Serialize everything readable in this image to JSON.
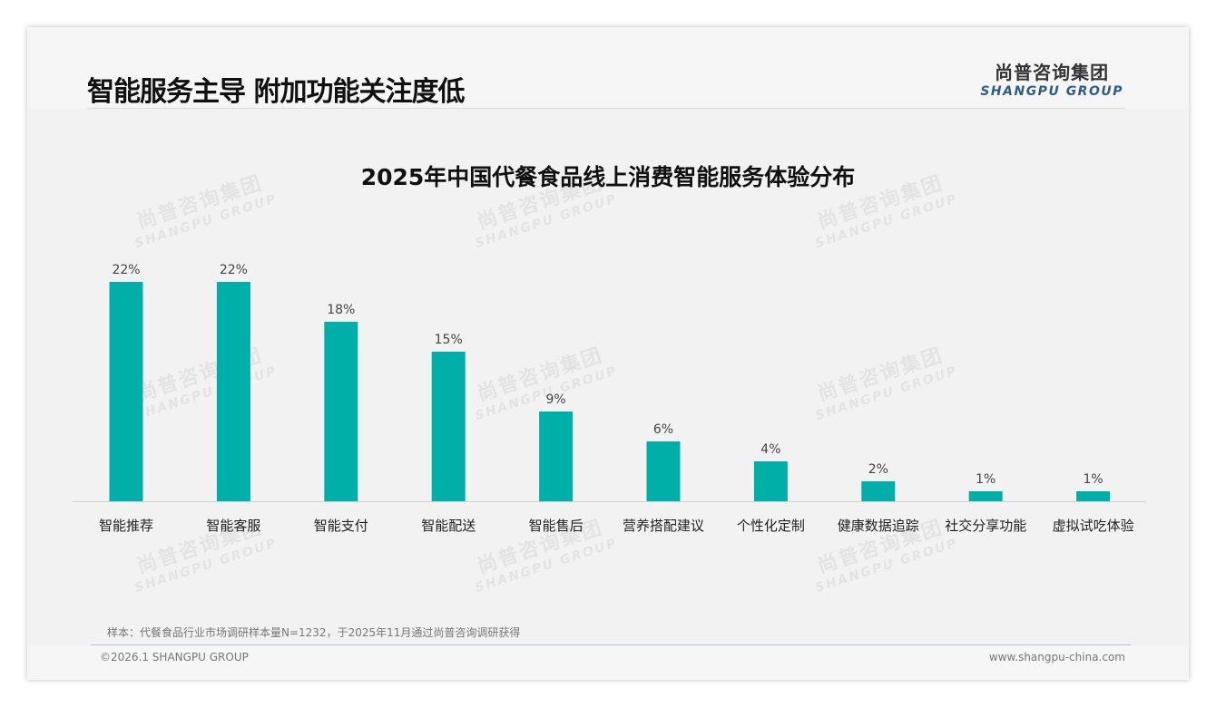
{
  "header": {
    "title": "智能服务主导 附加功能关注度低",
    "logo_cn": "尚普咨询集团",
    "logo_en": "SHANGPU GROUP"
  },
  "watermark": {
    "cn": "尚普咨询集团",
    "en": "SHANGPU GROUP"
  },
  "chart_data": {
    "type": "bar",
    "title": "2025年中国代餐食品线上消费智能服务体验分布",
    "categories": [
      "智能推荐",
      "智能客服",
      "智能支付",
      "智能配送",
      "智能售后",
      "营养搭配建议",
      "个性化定制",
      "健康数据追踪",
      "社交分享功能",
      "虚拟试吃体验"
    ],
    "values": [
      22,
      22,
      18,
      15,
      9,
      6,
      4,
      2,
      1,
      1
    ],
    "labels": [
      "22%",
      "22%",
      "18%",
      "15%",
      "9%",
      "6%",
      "4%",
      "2%",
      "1%",
      "1%"
    ],
    "unit": "%",
    "ylim": [
      0,
      22
    ],
    "grid": false,
    "bar_color": "#00b0a8",
    "xlabel": "",
    "ylabel": ""
  },
  "footer": {
    "note": "样本：代餐食品行业市场调研样本量N=1232，于2025年11月通过尚普咨询调研获得",
    "copyright": "©2026.1 SHANGPU GROUP",
    "website": "www.shangpu-china.com"
  }
}
